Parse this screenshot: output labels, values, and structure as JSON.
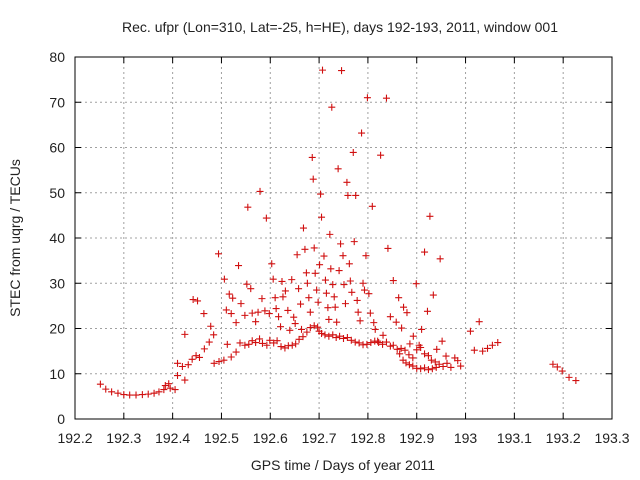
{
  "chart_data": {
    "type": "scatter",
    "title": "Rec. ufpr (Lon=310, Lat=-25, h=HE), days 192-193, 2011, window 001",
    "xlabel": "GPS time / Days of year 2011",
    "ylabel": "STEC from uqrg / TECUs",
    "xlim": [
      192.2,
      193.3
    ],
    "ylim": [
      0,
      80
    ],
    "xticks": [
      192.2,
      192.3,
      192.4,
      192.5,
      192.6,
      192.7,
      192.8,
      192.9,
      193.0,
      193.1,
      193.2,
      193.3
    ],
    "xtick_labels": [
      "192.2",
      "192.3",
      "192.4",
      "192.5",
      "192.6",
      "192.7",
      "192.8",
      "192.9",
      "193",
      "193.1",
      "193.2",
      "193.3"
    ],
    "yticks": [
      0,
      10,
      20,
      30,
      40,
      50,
      60,
      70,
      80
    ],
    "ytick_labels": [
      "0",
      "10",
      "20",
      "30",
      "40",
      "50",
      "60",
      "70",
      "80"
    ],
    "grid": true,
    "marker": "+",
    "color": "#d01010",
    "series": [
      {
        "points": [
          [
            192.252,
            7.7
          ],
          [
            192.263,
            6.6
          ],
          [
            192.275,
            6.0
          ],
          [
            192.288,
            5.7
          ],
          [
            192.3,
            5.4
          ],
          [
            192.312,
            5.3
          ],
          [
            192.325,
            5.3
          ],
          [
            192.338,
            5.4
          ],
          [
            192.35,
            5.5
          ],
          [
            192.362,
            5.7
          ],
          [
            192.372,
            6.0
          ],
          [
            192.382,
            6.5
          ],
          [
            192.385,
            7.4
          ],
          [
            192.395,
            6.8
          ],
          [
            192.392,
            7.8
          ],
          [
            192.405,
            6.5
          ],
          [
            192.41,
            9.6
          ],
          [
            192.41,
            12.3
          ],
          [
            192.42,
            11.6
          ],
          [
            192.425,
            8.6
          ],
          [
            192.432,
            12.0
          ],
          [
            192.44,
            13.2
          ],
          [
            192.448,
            14.0
          ],
          [
            192.455,
            13.6
          ],
          [
            192.465,
            15.5
          ],
          [
            192.475,
            17.0
          ],
          [
            192.484,
            18.6
          ],
          [
            192.425,
            18.7
          ],
          [
            192.442,
            26.4
          ],
          [
            192.451,
            26.1
          ],
          [
            192.464,
            23.3
          ],
          [
            192.478,
            20.5
          ],
          [
            192.485,
            12.3
          ],
          [
            192.495,
            12.7
          ],
          [
            192.505,
            13.0
          ],
          [
            192.512,
            16.5
          ],
          [
            192.52,
            13.7
          ],
          [
            192.53,
            14.8
          ],
          [
            192.538,
            16.8
          ],
          [
            192.548,
            16.3
          ],
          [
            192.556,
            16.5
          ],
          [
            192.563,
            17.3
          ],
          [
            192.57,
            16.9
          ],
          [
            192.578,
            17.7
          ],
          [
            192.584,
            16.7
          ],
          [
            192.593,
            16.3
          ],
          [
            192.599,
            17.4
          ],
          [
            192.607,
            16.8
          ],
          [
            192.614,
            17.3
          ],
          [
            192.622,
            16.0
          ],
          [
            192.63,
            15.7
          ],
          [
            192.637,
            16.2
          ],
          [
            192.645,
            16.3
          ],
          [
            192.652,
            16.6
          ],
          [
            192.659,
            17.6
          ],
          [
            192.667,
            18.2
          ],
          [
            192.675,
            19.2
          ],
          [
            192.682,
            20.2
          ],
          [
            192.69,
            20.6
          ],
          [
            192.697,
            20.3
          ],
          [
            192.494,
            36.5
          ],
          [
            192.506,
            30.9
          ],
          [
            192.51,
            24.1
          ],
          [
            192.516,
            27.6
          ],
          [
            192.52,
            23.3
          ],
          [
            192.523,
            26.7
          ],
          [
            192.53,
            21.3
          ],
          [
            192.535,
            33.9
          ],
          [
            192.54,
            25.5
          ],
          [
            192.548,
            22.9
          ],
          [
            192.552,
            29.8
          ],
          [
            192.554,
            46.8
          ],
          [
            192.56,
            28.8
          ],
          [
            192.563,
            23.4
          ],
          [
            192.57,
            21.5
          ],
          [
            192.575,
            23.6
          ],
          [
            192.579,
            50.3
          ],
          [
            192.583,
            26.6
          ],
          [
            192.589,
            23.9
          ],
          [
            192.592,
            44.4
          ],
          [
            192.598,
            23.3
          ],
          [
            192.603,
            34.3
          ],
          [
            192.606,
            30.9
          ],
          [
            192.61,
            26.8
          ],
          [
            192.612,
            24.4
          ],
          [
            192.617,
            22.6
          ],
          [
            192.621,
            20.4
          ],
          [
            192.624,
            30.4
          ],
          [
            192.626,
            27.0
          ],
          [
            192.631,
            28.3
          ],
          [
            192.636,
            24.0
          ],
          [
            192.64,
            19.6
          ],
          [
            192.644,
            30.8
          ],
          [
            192.648,
            22.5
          ],
          [
            192.651,
            21.1
          ],
          [
            192.655,
            36.3
          ],
          [
            192.658,
            28.8
          ],
          [
            192.662,
            25.4
          ],
          [
            192.664,
            19.8
          ],
          [
            192.668,
            42.2
          ],
          [
            192.671,
            37.5
          ],
          [
            192.674,
            32.3
          ],
          [
            192.676,
            30.0
          ],
          [
            192.679,
            26.8
          ],
          [
            192.682,
            23.6
          ],
          [
            192.686,
            57.8
          ],
          [
            192.688,
            53.0
          ],
          [
            192.69,
            37.8
          ],
          [
            192.692,
            32.2
          ],
          [
            192.695,
            28.5
          ],
          [
            192.698,
            25.8
          ],
          [
            192.701,
            34.1
          ],
          [
            192.703,
            49.7
          ],
          [
            192.705,
            44.6
          ],
          [
            192.707,
            77.1
          ],
          [
            192.71,
            36.0
          ],
          [
            192.713,
            30.7
          ],
          [
            192.715,
            27.8
          ],
          [
            192.718,
            24.6
          ],
          [
            192.72,
            22.0
          ],
          [
            192.722,
            40.8
          ],
          [
            192.724,
            33.2
          ],
          [
            192.726,
            68.9
          ],
          [
            192.728,
            29.7
          ],
          [
            192.731,
            27.0
          ],
          [
            192.733,
            24.7
          ],
          [
            192.736,
            21.4
          ],
          [
            192.739,
            55.3
          ],
          [
            192.741,
            32.8
          ],
          [
            192.744,
            38.7
          ],
          [
            192.746,
            77.0
          ],
          [
            192.749,
            36.1
          ],
          [
            192.751,
            29.7
          ],
          [
            192.754,
            25.5
          ],
          [
            192.757,
            52.3
          ],
          [
            192.759,
            49.4
          ],
          [
            192.762,
            34.3
          ],
          [
            192.764,
            30.5
          ],
          [
            192.767,
            28.0
          ],
          [
            192.77,
            58.9
          ],
          [
            192.772,
            39.2
          ],
          [
            192.775,
            49.4
          ],
          [
            192.778,
            26.2
          ],
          [
            192.78,
            23.6
          ],
          [
            192.784,
            21.7
          ],
          [
            192.787,
            63.2
          ],
          [
            192.79,
            30.0
          ],
          [
            192.793,
            28.5
          ],
          [
            192.796,
            36.1
          ],
          [
            192.799,
            71.0
          ],
          [
            192.802,
            27.7
          ],
          [
            192.805,
            23.4
          ],
          [
            192.809,
            47.0
          ],
          [
            192.812,
            21.3
          ],
          [
            192.815,
            19.8
          ],
          [
            192.82,
            17.2
          ],
          [
            192.826,
            58.3
          ],
          [
            192.831,
            18.5
          ],
          [
            192.838,
            70.9
          ],
          [
            192.841,
            37.7
          ],
          [
            192.846,
            22.6
          ],
          [
            192.852,
            30.6
          ],
          [
            192.858,
            21.4
          ],
          [
            192.863,
            26.8
          ],
          [
            192.869,
            20.1
          ],
          [
            192.873,
            24.7
          ],
          [
            192.88,
            23.5
          ],
          [
            192.886,
            16.6
          ],
          [
            192.893,
            18.3
          ],
          [
            192.899,
            29.9
          ],
          [
            192.905,
            16.3
          ],
          [
            192.91,
            19.8
          ],
          [
            192.916,
            36.9
          ],
          [
            192.922,
            23.8
          ],
          [
            192.927,
            44.8
          ],
          [
            192.934,
            27.4
          ],
          [
            192.941,
            15.4
          ],
          [
            192.948,
            35.4
          ],
          [
            192.952,
            17.2
          ],
          [
            192.96,
            13.9
          ],
          [
            192.7,
            19.4
          ],
          [
            192.705,
            18.9
          ],
          [
            192.712,
            18.6
          ],
          [
            192.72,
            18.3
          ],
          [
            192.728,
            18.6
          ],
          [
            192.735,
            18.0
          ],
          [
            192.742,
            18.3
          ],
          [
            192.75,
            17.8
          ],
          [
            192.758,
            18.0
          ],
          [
            192.766,
            17.4
          ],
          [
            192.774,
            17.0
          ],
          [
            192.782,
            16.8
          ],
          [
            192.79,
            16.4
          ],
          [
            192.798,
            16.5
          ],
          [
            192.806,
            16.9
          ],
          [
            192.814,
            17.2
          ],
          [
            192.822,
            16.9
          ],
          [
            192.83,
            16.5
          ],
          [
            192.838,
            17.0
          ],
          [
            192.846,
            16.1
          ],
          [
            192.852,
            16.3
          ],
          [
            192.86,
            15.4
          ],
          [
            192.865,
            14.4
          ],
          [
            192.872,
            13.0
          ],
          [
            192.878,
            12.4
          ],
          [
            192.885,
            12.0
          ],
          [
            192.892,
            11.7
          ],
          [
            192.9,
            11.2
          ],
          [
            192.908,
            11.1
          ],
          [
            192.916,
            11.3
          ],
          [
            192.924,
            10.9
          ],
          [
            192.932,
            11.1
          ],
          [
            192.94,
            11.4
          ],
          [
            192.946,
            12.1
          ],
          [
            192.954,
            11.6
          ],
          [
            192.962,
            12.3
          ],
          [
            192.97,
            11.4
          ],
          [
            192.978,
            13.5
          ],
          [
            192.984,
            12.9
          ],
          [
            192.99,
            11.7
          ],
          [
            192.868,
            15.6
          ],
          [
            192.876,
            15.2
          ],
          [
            192.884,
            14.2
          ],
          [
            192.892,
            13.5
          ],
          [
            192.9,
            15.3
          ],
          [
            192.908,
            15.8
          ],
          [
            192.916,
            14.4
          ],
          [
            192.924,
            14.0
          ],
          [
            192.93,
            13.0
          ],
          [
            192.938,
            12.6
          ],
          [
            193.01,
            19.4
          ],
          [
            193.018,
            15.2
          ],
          [
            193.028,
            21.5
          ],
          [
            193.035,
            15.0
          ],
          [
            193.045,
            15.6
          ],
          [
            193.055,
            16.3
          ],
          [
            193.066,
            16.9
          ],
          [
            193.179,
            12.1
          ],
          [
            193.188,
            11.5
          ],
          [
            193.198,
            10.6
          ],
          [
            193.212,
            9.2
          ],
          [
            193.226,
            8.5
          ]
        ]
      }
    ]
  }
}
